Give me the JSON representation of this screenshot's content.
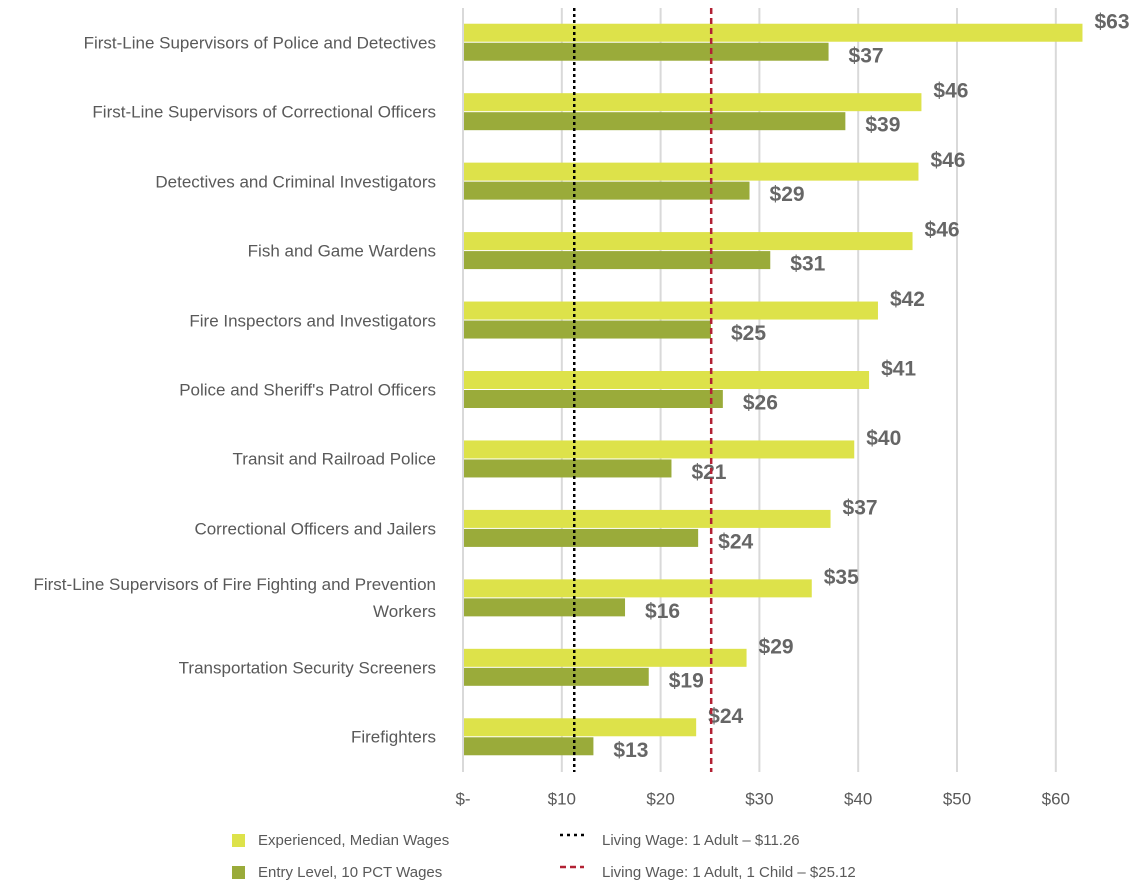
{
  "chart_data": {
    "type": "hbar",
    "categories": [
      "First-Line Supervisors of Police and Detectives",
      "First-Line Supervisors of Correctional Officers",
      "Detectives and Criminal Investigators",
      "Fish and Game Wardens",
      "Fire Inspectors and Investigators",
      "Police and Sheriff's Patrol Officers",
      "Transit and Railroad Police",
      "Correctional Officers and Jailers",
      "First-Line Supervisors of Fire Fighting and Prevention Workers",
      "Transportation Security Screeners",
      "Firefighters"
    ],
    "series": [
      {
        "name": "Experienced, Median Wages",
        "color": "#dde24a",
        "values": [
          62.7,
          46.4,
          46.1,
          45.5,
          42.0,
          41.1,
          39.6,
          37.2,
          35.3,
          28.7,
          23.6
        ],
        "value_labels": [
          "$63",
          "$46",
          "$46",
          "$46",
          "$42",
          "$41",
          "$40",
          "$37",
          "$35",
          "$29",
          "$24"
        ]
      },
      {
        "name": "Entry Level, 10 PCT Wages",
        "color": "#9aab3a",
        "values": [
          37.0,
          38.7,
          29.0,
          31.1,
          25.1,
          26.3,
          21.1,
          23.8,
          16.4,
          18.8,
          13.2
        ],
        "value_labels": [
          "$37",
          "$39",
          "$29",
          "$31",
          "$25",
          "$26",
          "$21",
          "$24",
          "$16",
          "$19",
          "$13"
        ]
      }
    ],
    "reference_lines": [
      {
        "name": "Living Wage: 1 Adult – $11.26",
        "value": 11.26,
        "color": "#000000"
      },
      {
        "name": "Living Wage: 1 Adult, 1 Child – $25.12",
        "value": 25.12,
        "color": "#b22234"
      }
    ],
    "xlim": [
      0,
      65
    ],
    "xticks": [
      {
        "value": 0,
        "label": "$-"
      },
      {
        "value": 10,
        "label": "$10"
      },
      {
        "value": 20,
        "label": "$20"
      },
      {
        "value": 30,
        "label": "$30"
      },
      {
        "value": 40,
        "label": "$40"
      },
      {
        "value": 50,
        "label": "$50"
      },
      {
        "value": 60,
        "label": "$60"
      }
    ],
    "grid": true
  }
}
